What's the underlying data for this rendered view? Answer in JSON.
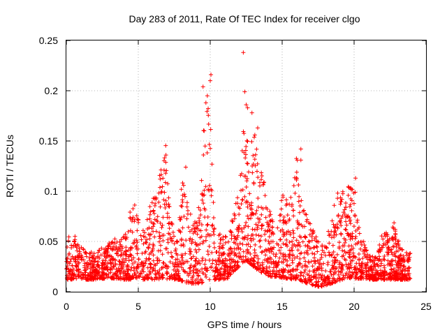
{
  "chart_data": {
    "type": "scatter",
    "title": "Day 283 of 2011, Rate Of TEC Index for receiver clgo",
    "xlabel": "GPS time / hours",
    "ylabel": "ROTI / TECUs",
    "xlim": [
      0,
      25
    ],
    "ylim": [
      0,
      0.25
    ],
    "xticks": [
      "0",
      "5",
      "10",
      "15",
      "20",
      "25"
    ],
    "yticks": [
      "0",
      "0.05",
      "0.1",
      "0.15",
      "0.2",
      "0.25"
    ],
    "grid": true,
    "marker": "+",
    "color": "#ff0000",
    "series": [
      {
        "envelope": {
          "x": [
            0,
            0.5,
            1,
            1.5,
            2,
            2.5,
            3,
            3.5,
            4,
            4.3,
            4.7,
            5,
            5.3,
            5.7,
            6,
            6.3,
            6.6,
            6.9,
            7.2,
            7.5,
            7.8,
            8.1,
            8.5,
            9,
            9.3,
            9.6,
            9.9,
            10.3,
            10.8,
            11.2,
            11.6,
            12,
            12.3,
            12.6,
            13,
            13.4,
            13.8,
            14.2,
            14.6,
            15,
            15.4,
            15.8,
            16.1,
            16.4,
            16.8,
            17.2,
            17.6,
            18,
            18.4,
            18.8,
            19.2,
            19.6,
            20,
            20.4,
            20.8,
            21.2,
            21.6,
            22,
            22.4,
            22.8,
            23.2,
            23.6,
            23.9
          ],
          "low": [
            0.012,
            0.012,
            0.013,
            0.012,
            0.012,
            0.013,
            0.013,
            0.013,
            0.012,
            0.012,
            0.012,
            0.013,
            0.012,
            0.013,
            0.012,
            0.012,
            0.013,
            0.013,
            0.012,
            0.012,
            0.012,
            0.01,
            0.008,
            0.008,
            0.008,
            0.01,
            0.012,
            0.012,
            0.012,
            0.013,
            0.02,
            0.025,
            0.03,
            0.03,
            0.025,
            0.02,
            0.018,
            0.015,
            0.015,
            0.014,
            0.013,
            0.012,
            0.012,
            0.01,
            0.008,
            0.006,
            0.005,
            0.006,
            0.008,
            0.01,
            0.012,
            0.013,
            0.013,
            0.013,
            0.013,
            0.012,
            0.012,
            0.012,
            0.012,
            0.012,
            0.012,
            0.012,
            0.012
          ],
          "high": [
            0.055,
            0.062,
            0.045,
            0.04,
            0.04,
            0.045,
            0.05,
            0.055,
            0.055,
            0.075,
            0.09,
            0.075,
            0.06,
            0.08,
            0.1,
            0.095,
            0.13,
            0.15,
            0.08,
            0.065,
            0.06,
            0.125,
            0.08,
            0.07,
            0.1,
            0.2,
            0.215,
            0.065,
            0.055,
            0.06,
            0.08,
            0.1,
            0.16,
            0.15,
            0.16,
            0.13,
            0.11,
            0.08,
            0.07,
            0.1,
            0.09,
            0.12,
            0.14,
            0.09,
            0.075,
            0.06,
            0.05,
            0.05,
            0.07,
            0.1,
            0.1,
            0.105,
            0.112,
            0.06,
            0.045,
            0.035,
            0.035,
            0.065,
            0.06,
            0.07,
            0.045,
            0.04,
            0.045
          ]
        },
        "outliers": [
          {
            "x": 9.5,
            "y": 0.204
          },
          {
            "x": 9.7,
            "y": 0.188
          },
          {
            "x": 9.8,
            "y": 0.195
          },
          {
            "x": 10.0,
            "y": 0.21
          },
          {
            "x": 10.05,
            "y": 0.216
          },
          {
            "x": 12.3,
            "y": 0.238
          },
          {
            "x": 12.4,
            "y": 0.199
          },
          {
            "x": 12.5,
            "y": 0.186
          },
          {
            "x": 12.6,
            "y": 0.183
          },
          {
            "x": 12.9,
            "y": 0.178
          },
          {
            "x": 13.1,
            "y": 0.156
          },
          {
            "x": 13.3,
            "y": 0.163
          },
          {
            "x": 16.3,
            "y": 0.142
          },
          {
            "x": 16.3,
            "y": 0.131
          },
          {
            "x": 20.1,
            "y": 0.113
          },
          {
            "x": 8.3,
            "y": 0.124
          }
        ]
      }
    ]
  }
}
